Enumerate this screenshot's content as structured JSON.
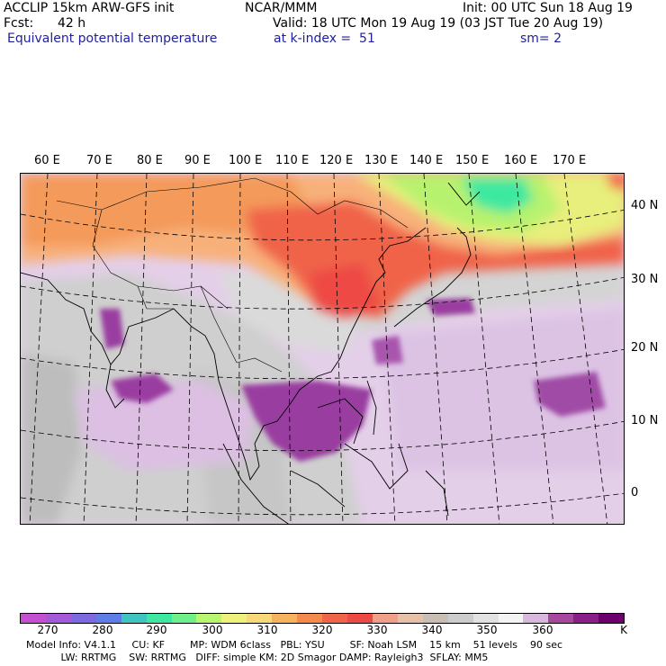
{
  "header": {
    "model": "ACCLIP 15km ARW-GFS init",
    "org": "NCAR/MMM",
    "init": "Init: 00 UTC Sun 18 Aug 19",
    "fcst_label": "Fcst:",
    "fcst_value": "42 h",
    "valid": "Valid: 18 UTC Mon 19 Aug 19 (03 JST Tue 20 Aug 19)",
    "field": "Equivalent potential temperature",
    "level": "at k-index =  51",
    "smooth": "sm= 2"
  },
  "map": {
    "lon_labels": [
      "60 E",
      "70 E",
      "80 E",
      "90 E",
      "100 E",
      "110 E",
      "120 E",
      "130 E",
      "140 E",
      "150 E",
      "160 E",
      "170 E"
    ],
    "lat_labels": [
      "40 N",
      "30 N",
      "20 N",
      "10 N",
      "0"
    ],
    "colors": {
      "land_outline": "#000000",
      "grid": "#000000"
    }
  },
  "colorbar": {
    "colors": [
      "#c44fd1",
      "#a25ad9",
      "#7e6ae0",
      "#5f7de6",
      "#3fc4c1",
      "#3ee8a0",
      "#6ef08a",
      "#b7f66e",
      "#eef27a",
      "#f8d97a",
      "#f6b25c",
      "#f48a4b",
      "#f0644a",
      "#ee4a45",
      "#f0a088",
      "#e8c0a8",
      "#c8beb4",
      "#cccccc",
      "#e2e2e2",
      "#f4f4f4",
      "#d9b8de",
      "#a7489f",
      "#8a1f8a",
      "#6e006e"
    ],
    "tick_labels": [
      "270",
      "280",
      "290",
      "300",
      "310",
      "320",
      "330",
      "340",
      "350",
      "360"
    ],
    "unit": "K"
  },
  "footer": {
    "line1": "Model Info: V4.1.1     CU: KF        MP: WDM 6class   PBL: YSU        SF: Noah LSM    15 km    51 levels    90 sec",
    "line2": "           LW: RRTMG    SW: RRTMG   DIFF: simple KM: 2D Smagor DAMP: Rayleigh3  SFLAY: MM5"
  }
}
